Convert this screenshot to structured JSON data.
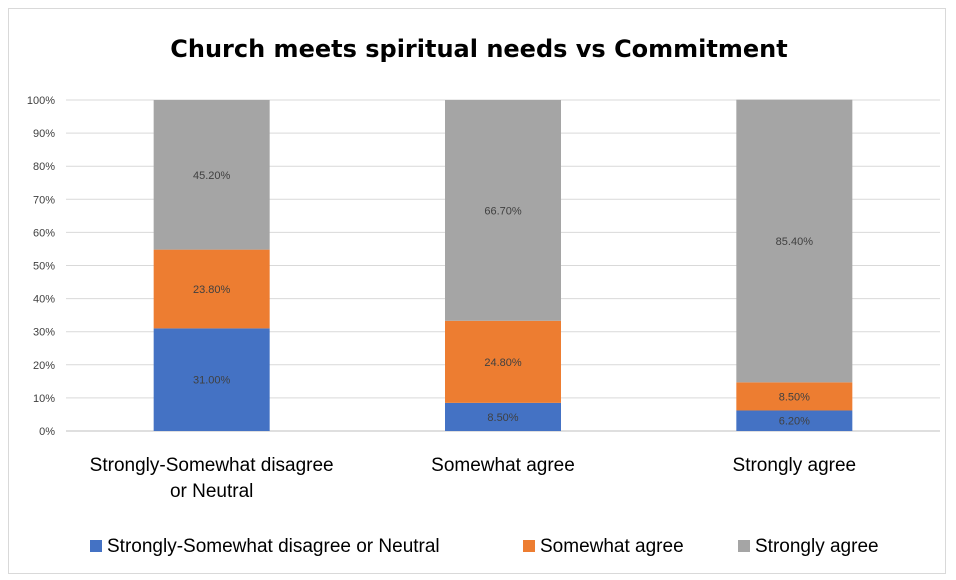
{
  "chart_data": {
    "type": "bar",
    "stacked": "percent",
    "title": "Church meets spiritual needs vs Commitment",
    "xlabel": "",
    "ylabel": "",
    "ylim": [
      0,
      100
    ],
    "yticks": [
      "0%",
      "10%",
      "20%",
      "30%",
      "40%",
      "50%",
      "60%",
      "70%",
      "80%",
      "90%",
      "100%"
    ],
    "categories": [
      [
        "Strongly-Somewhat disagree",
        "or Neutral"
      ],
      [
        "Somewhat agree"
      ],
      [
        "Strongly agree"
      ]
    ],
    "series": [
      {
        "name": "Strongly-Somewhat disagree or Neutral",
        "color": "#4472c4",
        "values": [
          31.0,
          8.5,
          6.2
        ],
        "labels": [
          "31.00%",
          "8.50%",
          "6.20%"
        ]
      },
      {
        "name": "Somewhat agree",
        "color": "#ed7d31",
        "values": [
          23.8,
          24.8,
          8.5
        ],
        "labels": [
          "23.80%",
          "24.80%",
          "8.50%"
        ]
      },
      {
        "name": "Strongly agree",
        "color": "#a5a5a5",
        "values": [
          45.2,
          66.7,
          85.4
        ],
        "labels": [
          "45.20%",
          "66.70%",
          "85.40%"
        ]
      }
    ],
    "grid": true,
    "legend_position": "bottom"
  }
}
